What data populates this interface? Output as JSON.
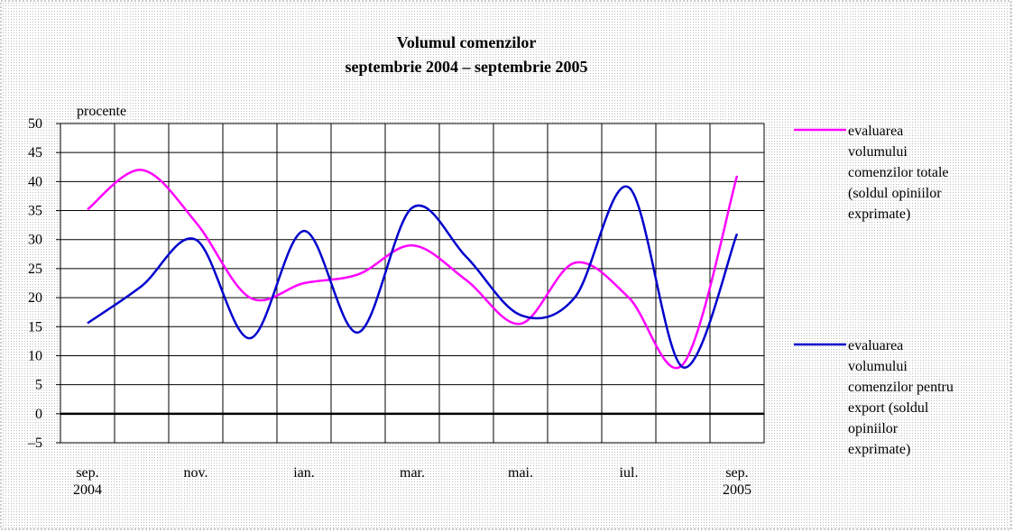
{
  "chart_data": {
    "type": "line",
    "title": "Volumul comenzilor",
    "subtitle": "septembrie 2004 – septembrie 2005",
    "y_label": "procente",
    "categories": [
      "sep. 2004",
      null,
      "nov.",
      null,
      "ian.",
      null,
      "mar.",
      null,
      "mai.",
      null,
      "iul.",
      null,
      "sep. 2005"
    ],
    "series": [
      {
        "name": "evaluarea volumului comenzilor totale (soldul opiniilor exprimate)",
        "color": "#ff00ff",
        "values": [
          35.2,
          42,
          33,
          20,
          22.5,
          24,
          29,
          23,
          15.5,
          26,
          20,
          8.5,
          41
        ]
      },
      {
        "name": "evaluarea volumului comenzilor pentru export (soldul opiniilor exprimate)",
        "color": "#0000cc",
        "values": [
          15.6,
          22,
          30,
          13,
          31.5,
          14,
          35.5,
          27,
          17,
          20,
          39,
          8,
          31
        ]
      }
    ],
    "ylim": [
      -5,
      50
    ],
    "yticks": [
      {
        "value": -5,
        "label": "–5"
      },
      0,
      5,
      10,
      15,
      20,
      25,
      30,
      35,
      40,
      45,
      50
    ],
    "grid": true,
    "smooth": true,
    "legend": "right"
  }
}
